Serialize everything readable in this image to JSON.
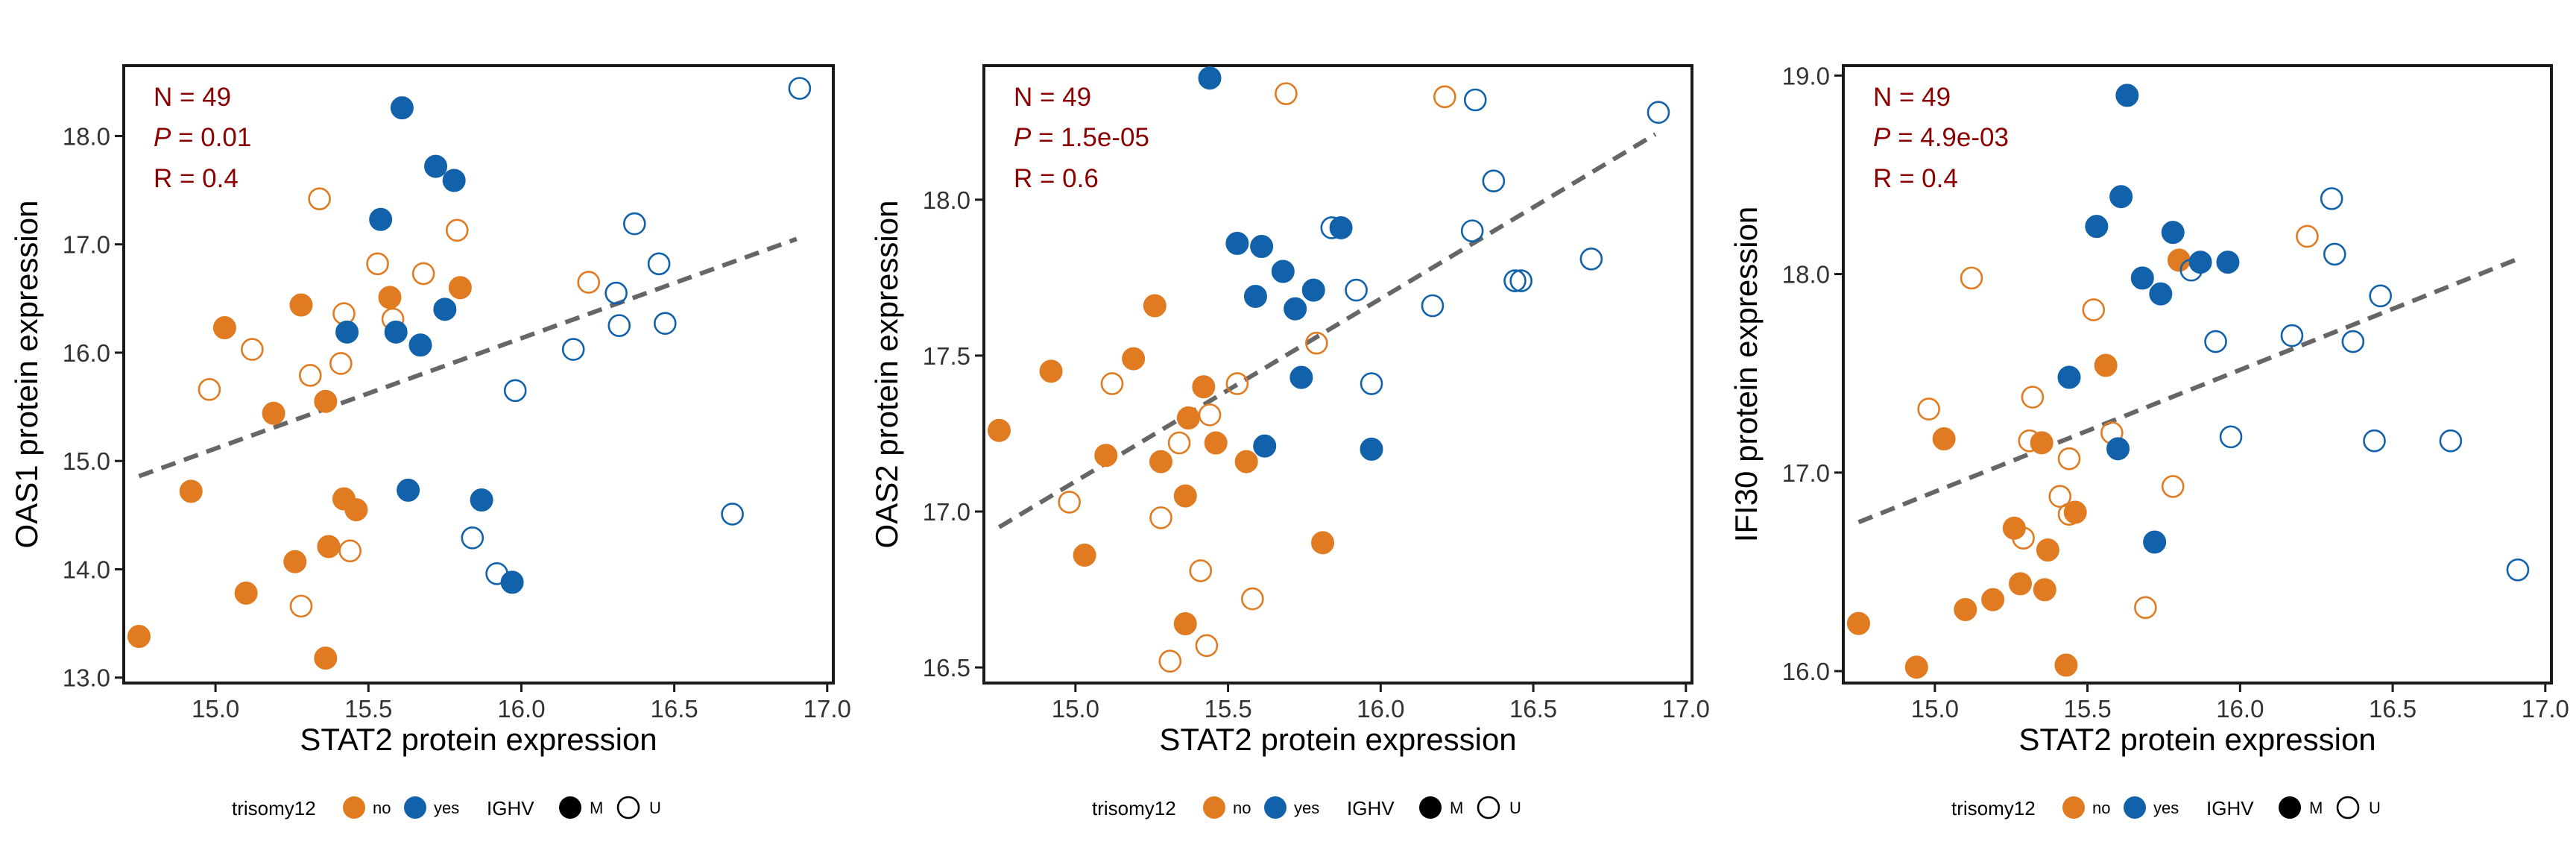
{
  "colors": {
    "no": "#E07B22",
    "yes": "#1162AA",
    "annotation": "#8B0000",
    "fit_line": "#666666",
    "axis": "#1a1a1a"
  },
  "legend": {
    "trisomy_title": "trisomy12",
    "trisomy_no": "no",
    "trisomy_yes": "yes",
    "ighv_title": "IGHV",
    "ighv_m": "M",
    "ighv_u": "U"
  },
  "chart_data": [
    {
      "type": "scatter",
      "xlabel": "STAT2 protein expression",
      "ylabel": "OAS1 protein expression",
      "xlim": [
        14.7,
        17.02
      ],
      "ylim": [
        12.95,
        18.65
      ],
      "xticks": [
        "15.0",
        "15.5",
        "16.0",
        "16.5",
        "17.0"
      ],
      "yticks": [
        "13.0",
        "14.0",
        "15.0",
        "16.0",
        "17.0",
        "18.0"
      ],
      "annotation": {
        "n": "N = 49",
        "p_label": "P",
        "p_value": " = 0.01",
        "r": "R = 0.4"
      },
      "fit_line": [
        [
          14.75,
          14.86
        ],
        [
          16.9,
          17.05
        ]
      ],
      "legend_position": "bottom",
      "grid": false,
      "points": [
        {
          "x": 14.75,
          "y": 13.38,
          "t": "no",
          "i": "M"
        },
        {
          "x": 14.92,
          "y": 14.72,
          "t": "no",
          "i": "M"
        },
        {
          "x": 14.98,
          "y": 15.66,
          "t": "no",
          "i": "U"
        },
        {
          "x": 15.03,
          "y": 16.23,
          "t": "no",
          "i": "M"
        },
        {
          "x": 15.1,
          "y": 13.78,
          "t": "no",
          "i": "M"
        },
        {
          "x": 15.12,
          "y": 16.03,
          "t": "no",
          "i": "U"
        },
        {
          "x": 15.19,
          "y": 15.44,
          "t": "no",
          "i": "M"
        },
        {
          "x": 15.26,
          "y": 14.07,
          "t": "no",
          "i": "M"
        },
        {
          "x": 15.28,
          "y": 16.44,
          "t": "no",
          "i": "M"
        },
        {
          "x": 15.28,
          "y": 13.66,
          "t": "no",
          "i": "U"
        },
        {
          "x": 15.31,
          "y": 15.79,
          "t": "no",
          "i": "U"
        },
        {
          "x": 15.34,
          "y": 17.42,
          "t": "no",
          "i": "U"
        },
        {
          "x": 15.36,
          "y": 15.55,
          "t": "no",
          "i": "M"
        },
        {
          "x": 15.36,
          "y": 13.18,
          "t": "no",
          "i": "M"
        },
        {
          "x": 15.37,
          "y": 14.21,
          "t": "no",
          "i": "M"
        },
        {
          "x": 15.41,
          "y": 15.9,
          "t": "no",
          "i": "U"
        },
        {
          "x": 15.42,
          "y": 16.36,
          "t": "no",
          "i": "U"
        },
        {
          "x": 15.42,
          "y": 14.65,
          "t": "no",
          "i": "M"
        },
        {
          "x": 15.44,
          "y": 14.17,
          "t": "no",
          "i": "U"
        },
        {
          "x": 15.46,
          "y": 14.55,
          "t": "no",
          "i": "M"
        },
        {
          "x": 15.53,
          "y": 16.82,
          "t": "no",
          "i": "U"
        },
        {
          "x": 15.57,
          "y": 16.51,
          "t": "no",
          "i": "M"
        },
        {
          "x": 15.58,
          "y": 16.31,
          "t": "no",
          "i": "U"
        },
        {
          "x": 15.68,
          "y": 16.73,
          "t": "no",
          "i": "U"
        },
        {
          "x": 15.79,
          "y": 17.13,
          "t": "no",
          "i": "U"
        },
        {
          "x": 15.8,
          "y": 16.6,
          "t": "no",
          "i": "M"
        },
        {
          "x": 16.22,
          "y": 16.65,
          "t": "no",
          "i": "U"
        },
        {
          "x": 15.43,
          "y": 16.19,
          "t": "yes",
          "i": "M"
        },
        {
          "x": 15.54,
          "y": 17.23,
          "t": "yes",
          "i": "M"
        },
        {
          "x": 15.59,
          "y": 16.19,
          "t": "yes",
          "i": "M"
        },
        {
          "x": 15.61,
          "y": 18.26,
          "t": "yes",
          "i": "M"
        },
        {
          "x": 15.63,
          "y": 14.73,
          "t": "yes",
          "i": "M"
        },
        {
          "x": 15.67,
          "y": 16.07,
          "t": "yes",
          "i": "M"
        },
        {
          "x": 15.72,
          "y": 17.72,
          "t": "yes",
          "i": "M"
        },
        {
          "x": 15.75,
          "y": 16.4,
          "t": "yes",
          "i": "M"
        },
        {
          "x": 15.78,
          "y": 17.59,
          "t": "yes",
          "i": "M"
        },
        {
          "x": 15.87,
          "y": 14.64,
          "t": "yes",
          "i": "M"
        },
        {
          "x": 15.97,
          "y": 13.88,
          "t": "yes",
          "i": "M"
        },
        {
          "x": 15.84,
          "y": 14.29,
          "t": "yes",
          "i": "U"
        },
        {
          "x": 15.92,
          "y": 13.96,
          "t": "yes",
          "i": "U"
        },
        {
          "x": 15.98,
          "y": 15.65,
          "t": "yes",
          "i": "U"
        },
        {
          "x": 16.17,
          "y": 16.03,
          "t": "yes",
          "i": "U"
        },
        {
          "x": 16.31,
          "y": 16.55,
          "t": "yes",
          "i": "U"
        },
        {
          "x": 16.32,
          "y": 16.25,
          "t": "yes",
          "i": "U"
        },
        {
          "x": 16.37,
          "y": 17.19,
          "t": "yes",
          "i": "U"
        },
        {
          "x": 16.45,
          "y": 16.82,
          "t": "yes",
          "i": "U"
        },
        {
          "x": 16.47,
          "y": 16.27,
          "t": "yes",
          "i": "U"
        },
        {
          "x": 16.69,
          "y": 14.51,
          "t": "yes",
          "i": "U"
        },
        {
          "x": 16.91,
          "y": 18.44,
          "t": "yes",
          "i": "U"
        }
      ]
    },
    {
      "type": "scatter",
      "xlabel": "STAT2 protein expression",
      "ylabel": "OAS2 protein expression",
      "xlim": [
        14.7,
        17.02
      ],
      "ylim": [
        16.45,
        18.43
      ],
      "xticks": [
        "15.0",
        "15.5",
        "16.0",
        "16.5",
        "17.0"
      ],
      "yticks": [
        "16.5",
        "17.0",
        "17.5",
        "18.0"
      ],
      "annotation": {
        "n": "N = 49",
        "p_label": "P",
        "p_value": " = 1.5e-05",
        "r": "R = 0.6"
      },
      "fit_line": [
        [
          14.75,
          16.95
        ],
        [
          16.9,
          18.21
        ]
      ],
      "legend_position": "bottom",
      "grid": false,
      "points": [
        {
          "x": 14.75,
          "y": 17.26,
          "t": "no",
          "i": "M"
        },
        {
          "x": 14.92,
          "y": 17.45,
          "t": "no",
          "i": "M"
        },
        {
          "x": 14.98,
          "y": 17.03,
          "t": "no",
          "i": "U"
        },
        {
          "x": 15.03,
          "y": 16.86,
          "t": "no",
          "i": "M"
        },
        {
          "x": 15.1,
          "y": 17.18,
          "t": "no",
          "i": "M"
        },
        {
          "x": 15.12,
          "y": 17.41,
          "t": "no",
          "i": "U"
        },
        {
          "x": 15.19,
          "y": 17.49,
          "t": "no",
          "i": "M"
        },
        {
          "x": 15.26,
          "y": 17.66,
          "t": "no",
          "i": "M"
        },
        {
          "x": 15.28,
          "y": 17.16,
          "t": "no",
          "i": "M"
        },
        {
          "x": 15.28,
          "y": 16.98,
          "t": "no",
          "i": "U"
        },
        {
          "x": 15.31,
          "y": 16.52,
          "t": "no",
          "i": "U"
        },
        {
          "x": 15.34,
          "y": 17.22,
          "t": "no",
          "i": "U"
        },
        {
          "x": 15.36,
          "y": 16.64,
          "t": "no",
          "i": "M"
        },
        {
          "x": 15.36,
          "y": 17.05,
          "t": "no",
          "i": "M"
        },
        {
          "x": 15.37,
          "y": 17.3,
          "t": "no",
          "i": "M"
        },
        {
          "x": 15.41,
          "y": 16.81,
          "t": "no",
          "i": "U"
        },
        {
          "x": 15.42,
          "y": 17.4,
          "t": "no",
          "i": "M"
        },
        {
          "x": 15.43,
          "y": 16.57,
          "t": "no",
          "i": "U"
        },
        {
          "x": 15.44,
          "y": 17.31,
          "t": "no",
          "i": "U"
        },
        {
          "x": 15.46,
          "y": 17.22,
          "t": "no",
          "i": "M"
        },
        {
          "x": 15.53,
          "y": 17.41,
          "t": "no",
          "i": "U"
        },
        {
          "x": 15.56,
          "y": 17.16,
          "t": "no",
          "i": "M"
        },
        {
          "x": 15.58,
          "y": 16.72,
          "t": "no",
          "i": "U"
        },
        {
          "x": 15.69,
          "y": 18.34,
          "t": "no",
          "i": "U"
        },
        {
          "x": 15.79,
          "y": 17.54,
          "t": "no",
          "i": "U"
        },
        {
          "x": 15.81,
          "y": 16.9,
          "t": "no",
          "i": "M"
        },
        {
          "x": 16.21,
          "y": 18.33,
          "t": "no",
          "i": "U"
        },
        {
          "x": 15.44,
          "y": 18.39,
          "t": "yes",
          "i": "M"
        },
        {
          "x": 15.53,
          "y": 17.86,
          "t": "yes",
          "i": "M"
        },
        {
          "x": 15.59,
          "y": 17.69,
          "t": "yes",
          "i": "M"
        },
        {
          "x": 15.61,
          "y": 17.85,
          "t": "yes",
          "i": "M"
        },
        {
          "x": 15.62,
          "y": 17.21,
          "t": "yes",
          "i": "M"
        },
        {
          "x": 15.68,
          "y": 17.77,
          "t": "yes",
          "i": "M"
        },
        {
          "x": 15.72,
          "y": 17.65,
          "t": "yes",
          "i": "M"
        },
        {
          "x": 15.74,
          "y": 17.43,
          "t": "yes",
          "i": "M"
        },
        {
          "x": 15.78,
          "y": 17.71,
          "t": "yes",
          "i": "M"
        },
        {
          "x": 15.87,
          "y": 17.91,
          "t": "yes",
          "i": "M"
        },
        {
          "x": 15.97,
          "y": 17.2,
          "t": "yes",
          "i": "M"
        },
        {
          "x": 15.84,
          "y": 17.91,
          "t": "yes",
          "i": "U"
        },
        {
          "x": 15.92,
          "y": 17.71,
          "t": "yes",
          "i": "U"
        },
        {
          "x": 15.97,
          "y": 17.41,
          "t": "yes",
          "i": "U"
        },
        {
          "x": 16.17,
          "y": 17.66,
          "t": "yes",
          "i": "U"
        },
        {
          "x": 16.3,
          "y": 17.9,
          "t": "yes",
          "i": "U"
        },
        {
          "x": 16.31,
          "y": 18.32,
          "t": "yes",
          "i": "U"
        },
        {
          "x": 16.37,
          "y": 18.06,
          "t": "yes",
          "i": "U"
        },
        {
          "x": 16.44,
          "y": 17.74,
          "t": "yes",
          "i": "U"
        },
        {
          "x": 16.46,
          "y": 17.74,
          "t": "yes",
          "i": "U"
        },
        {
          "x": 16.69,
          "y": 17.81,
          "t": "yes",
          "i": "U"
        },
        {
          "x": 16.91,
          "y": 18.28,
          "t": "yes",
          "i": "U"
        }
      ]
    },
    {
      "type": "scatter",
      "xlabel": "STAT2 protein expression",
      "ylabel": "IFI30 protein expression",
      "xlim": [
        14.7,
        17.02
      ],
      "ylim": [
        15.94,
        19.05
      ],
      "xticks": [
        "15.0",
        "15.5",
        "16.0",
        "16.5",
        "17.0"
      ],
      "yticks": [
        "16.0",
        "17.0",
        "18.0",
        "19.0"
      ],
      "annotation": {
        "n": "N = 49",
        "p_label": "P",
        "p_value": " = 4.9e-03",
        "r": "R = 0.4"
      },
      "fit_line": [
        [
          14.75,
          16.75
        ],
        [
          16.9,
          18.07
        ]
      ],
      "legend_position": "bottom",
      "grid": false,
      "points": [
        {
          "x": 14.75,
          "y": 16.24,
          "t": "no",
          "i": "M"
        },
        {
          "x": 14.94,
          "y": 16.02,
          "t": "no",
          "i": "M"
        },
        {
          "x": 14.98,
          "y": 17.32,
          "t": "no",
          "i": "U"
        },
        {
          "x": 15.03,
          "y": 17.17,
          "t": "no",
          "i": "M"
        },
        {
          "x": 15.1,
          "y": 16.31,
          "t": "no",
          "i": "M"
        },
        {
          "x": 15.12,
          "y": 17.98,
          "t": "no",
          "i": "U"
        },
        {
          "x": 15.19,
          "y": 16.36,
          "t": "no",
          "i": "M"
        },
        {
          "x": 15.26,
          "y": 16.72,
          "t": "no",
          "i": "M"
        },
        {
          "x": 15.28,
          "y": 16.44,
          "t": "no",
          "i": "M"
        },
        {
          "x": 15.29,
          "y": 16.67,
          "t": "no",
          "i": "U"
        },
        {
          "x": 15.31,
          "y": 17.16,
          "t": "no",
          "i": "U"
        },
        {
          "x": 15.32,
          "y": 17.38,
          "t": "no",
          "i": "U"
        },
        {
          "x": 15.35,
          "y": 17.15,
          "t": "no",
          "i": "M"
        },
        {
          "x": 15.36,
          "y": 16.41,
          "t": "no",
          "i": "M"
        },
        {
          "x": 15.37,
          "y": 16.61,
          "t": "no",
          "i": "M"
        },
        {
          "x": 15.41,
          "y": 16.88,
          "t": "no",
          "i": "U"
        },
        {
          "x": 15.43,
          "y": 16.03,
          "t": "no",
          "i": "M"
        },
        {
          "x": 15.44,
          "y": 17.07,
          "t": "no",
          "i": "U"
        },
        {
          "x": 15.44,
          "y": 16.79,
          "t": "no",
          "i": "U"
        },
        {
          "x": 15.46,
          "y": 16.8,
          "t": "no",
          "i": "M"
        },
        {
          "x": 15.52,
          "y": 17.82,
          "t": "no",
          "i": "U"
        },
        {
          "x": 15.56,
          "y": 17.54,
          "t": "no",
          "i": "M"
        },
        {
          "x": 15.58,
          "y": 17.2,
          "t": "no",
          "i": "U"
        },
        {
          "x": 15.69,
          "y": 16.32,
          "t": "no",
          "i": "U"
        },
        {
          "x": 15.78,
          "y": 16.93,
          "t": "no",
          "i": "U"
        },
        {
          "x": 15.8,
          "y": 18.07,
          "t": "no",
          "i": "M"
        },
        {
          "x": 16.22,
          "y": 18.19,
          "t": "no",
          "i": "U"
        },
        {
          "x": 15.44,
          "y": 17.48,
          "t": "yes",
          "i": "M"
        },
        {
          "x": 15.53,
          "y": 18.24,
          "t": "yes",
          "i": "M"
        },
        {
          "x": 15.6,
          "y": 17.12,
          "t": "yes",
          "i": "M"
        },
        {
          "x": 15.61,
          "y": 18.39,
          "t": "yes",
          "i": "M"
        },
        {
          "x": 15.63,
          "y": 18.9,
          "t": "yes",
          "i": "M"
        },
        {
          "x": 15.68,
          "y": 17.98,
          "t": "yes",
          "i": "M"
        },
        {
          "x": 15.72,
          "y": 16.65,
          "t": "yes",
          "i": "M"
        },
        {
          "x": 15.74,
          "y": 17.9,
          "t": "yes",
          "i": "M"
        },
        {
          "x": 15.78,
          "y": 18.21,
          "t": "yes",
          "i": "M"
        },
        {
          "x": 15.87,
          "y": 18.06,
          "t": "yes",
          "i": "M"
        },
        {
          "x": 15.96,
          "y": 18.06,
          "t": "yes",
          "i": "M"
        },
        {
          "x": 15.84,
          "y": 18.02,
          "t": "yes",
          "i": "U"
        },
        {
          "x": 15.92,
          "y": 17.66,
          "t": "yes",
          "i": "U"
        },
        {
          "x": 15.97,
          "y": 17.18,
          "t": "yes",
          "i": "U"
        },
        {
          "x": 16.17,
          "y": 17.69,
          "t": "yes",
          "i": "U"
        },
        {
          "x": 16.3,
          "y": 18.38,
          "t": "yes",
          "i": "U"
        },
        {
          "x": 16.31,
          "y": 18.1,
          "t": "yes",
          "i": "U"
        },
        {
          "x": 16.37,
          "y": 17.66,
          "t": "yes",
          "i": "U"
        },
        {
          "x": 16.44,
          "y": 17.16,
          "t": "yes",
          "i": "U"
        },
        {
          "x": 16.46,
          "y": 17.89,
          "t": "yes",
          "i": "U"
        },
        {
          "x": 16.69,
          "y": 17.16,
          "t": "yes",
          "i": "U"
        },
        {
          "x": 16.91,
          "y": 16.51,
          "t": "yes",
          "i": "U"
        }
      ]
    }
  ]
}
